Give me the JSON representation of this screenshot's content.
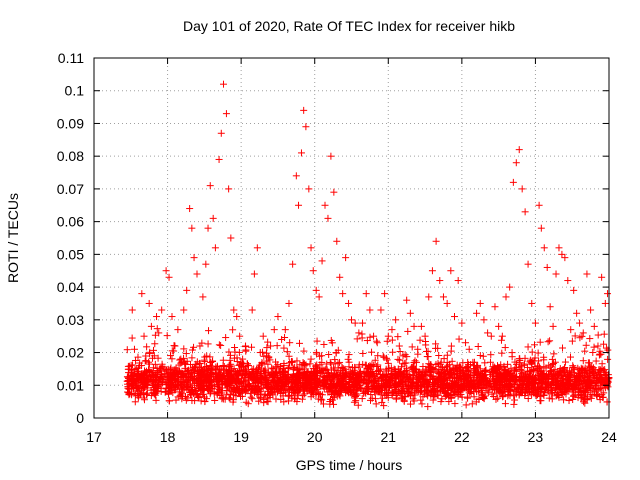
{
  "chart_data": {
    "type": "scatter",
    "title": "Day 101 of 2020, Rate Of TEC Index for receiver hikb",
    "xlabel": "GPS time / hours",
    "ylabel": "ROTI / TECUs",
    "xlim": [
      17,
      24
    ],
    "ylim": [
      0,
      0.11
    ],
    "xticks": [
      "17",
      "18",
      "19",
      "20",
      "21",
      "22",
      "23",
      "24"
    ],
    "yticks": [
      "0",
      "0.01",
      "0.02",
      "0.03",
      "0.04",
      "0.05",
      "0.06",
      "0.07",
      "0.08",
      "0.09",
      "0.1",
      "0.11"
    ],
    "xtick_values": [
      17,
      18,
      19,
      20,
      21,
      22,
      23,
      24
    ],
    "ytick_values": [
      0,
      0.01,
      0.02,
      0.03,
      0.04,
      0.05,
      0.06,
      0.07,
      0.08,
      0.09,
      0.1,
      0.11
    ],
    "grid": true,
    "marker": "+",
    "color": "#ff0000",
    "series": [
      {
        "name": "ROTI",
        "points": [
          [
            17.48,
            0.012
          ],
          [
            17.52,
            0.033
          ],
          [
            17.55,
            0.021
          ],
          [
            17.58,
            0.009
          ],
          [
            17.62,
            0.016
          ],
          [
            17.65,
            0.038
          ],
          [
            17.68,
            0.025
          ],
          [
            17.72,
            0.013
          ],
          [
            17.75,
            0.035
          ],
          [
            17.78,
            0.028
          ],
          [
            17.82,
            0.019
          ],
          [
            17.85,
            0.031
          ],
          [
            17.88,
            0.026
          ],
          [
            17.92,
            0.033
          ],
          [
            17.95,
            0.015
          ],
          [
            17.98,
            0.045
          ],
          [
            18.02,
            0.043
          ],
          [
            18.06,
            0.031
          ],
          [
            18.1,
            0.022
          ],
          [
            18.14,
            0.027
          ],
          [
            18.18,
            0.018
          ],
          [
            18.22,
            0.033
          ],
          [
            18.26,
            0.039
          ],
          [
            18.3,
            0.064
          ],
          [
            18.33,
            0.058
          ],
          [
            18.36,
            0.049
          ],
          [
            18.4,
            0.044
          ],
          [
            18.44,
            0.022
          ],
          [
            18.48,
            0.037
          ],
          [
            18.52,
            0.047
          ],
          [
            18.55,
            0.058
          ],
          [
            18.58,
            0.071
          ],
          [
            18.62,
            0.061
          ],
          [
            18.65,
            0.052
          ],
          [
            18.7,
            0.079
          ],
          [
            18.73,
            0.087
          ],
          [
            18.76,
            0.102
          ],
          [
            18.8,
            0.093
          ],
          [
            18.83,
            0.07
          ],
          [
            18.86,
            0.055
          ],
          [
            18.9,
            0.033
          ],
          [
            18.94,
            0.031
          ],
          [
            18.98,
            0.025
          ],
          [
            19.02,
            0.018
          ],
          [
            19.06,
            0.022
          ],
          [
            19.1,
            0.016
          ],
          [
            19.15,
            0.033
          ],
          [
            19.18,
            0.044
          ],
          [
            19.22,
            0.052
          ],
          [
            19.26,
            0.02
          ],
          [
            19.3,
            0.025
          ],
          [
            19.35,
            0.019
          ],
          [
            19.4,
            0.022
          ],
          [
            19.45,
            0.027
          ],
          [
            19.5,
            0.031
          ],
          [
            19.55,
            0.024
          ],
          [
            19.6,
            0.027
          ],
          [
            19.65,
            0.035
          ],
          [
            19.7,
            0.047
          ],
          [
            19.75,
            0.074
          ],
          [
            19.78,
            0.065
          ],
          [
            19.82,
            0.081
          ],
          [
            19.85,
            0.094
          ],
          [
            19.88,
            0.089
          ],
          [
            19.92,
            0.07
          ],
          [
            19.95,
            0.052
          ],
          [
            19.98,
            0.045
          ],
          [
            20.02,
            0.039
          ],
          [
            20.06,
            0.037
          ],
          [
            20.1,
            0.048
          ],
          [
            20.14,
            0.065
          ],
          [
            20.18,
            0.061
          ],
          [
            20.22,
            0.08
          ],
          [
            20.26,
            0.069
          ],
          [
            20.3,
            0.054
          ],
          [
            20.34,
            0.043
          ],
          [
            20.38,
            0.038
          ],
          [
            20.42,
            0.049
          ],
          [
            20.46,
            0.035
          ],
          [
            20.5,
            0.03
          ],
          [
            20.55,
            0.029
          ],
          [
            20.6,
            0.026
          ],
          [
            20.65,
            0.029
          ],
          [
            20.7,
            0.038
          ],
          [
            20.75,
            0.033
          ],
          [
            20.8,
            0.025
          ],
          [
            20.85,
            0.023
          ],
          [
            20.9,
            0.033
          ],
          [
            20.95,
            0.038
          ],
          [
            21.0,
            0.025
          ],
          [
            21.05,
            0.027
          ],
          [
            21.1,
            0.03
          ],
          [
            21.15,
            0.022
          ],
          [
            21.2,
            0.019
          ],
          [
            21.25,
            0.036
          ],
          [
            21.3,
            0.032
          ],
          [
            21.35,
            0.028
          ],
          [
            21.4,
            0.021
          ],
          [
            21.45,
            0.028
          ],
          [
            21.5,
            0.025
          ],
          [
            21.55,
            0.037
          ],
          [
            21.6,
            0.045
          ],
          [
            21.65,
            0.054
          ],
          [
            21.7,
            0.042
          ],
          [
            21.75,
            0.037
          ],
          [
            21.8,
            0.035
          ],
          [
            21.85,
            0.045
          ],
          [
            21.9,
            0.031
          ],
          [
            21.95,
            0.042
          ],
          [
            22.0,
            0.029
          ],
          [
            22.05,
            0.023
          ],
          [
            22.1,
            0.021
          ],
          [
            22.15,
            0.017
          ],
          [
            22.2,
            0.032
          ],
          [
            22.25,
            0.035
          ],
          [
            22.3,
            0.03
          ],
          [
            22.35,
            0.026
          ],
          [
            22.4,
            0.025
          ],
          [
            22.45,
            0.034
          ],
          [
            22.5,
            0.028
          ],
          [
            22.55,
            0.025
          ],
          [
            22.6,
            0.037
          ],
          [
            22.65,
            0.04
          ],
          [
            22.7,
            0.072
          ],
          [
            22.74,
            0.078
          ],
          [
            22.78,
            0.082
          ],
          [
            22.82,
            0.07
          ],
          [
            22.86,
            0.063
          ],
          [
            22.9,
            0.047
          ],
          [
            22.95,
            0.035
          ],
          [
            23.0,
            0.029
          ],
          [
            23.05,
            0.065
          ],
          [
            23.08,
            0.058
          ],
          [
            23.12,
            0.052
          ],
          [
            23.16,
            0.046
          ],
          [
            23.2,
            0.034
          ],
          [
            23.24,
            0.028
          ],
          [
            23.28,
            0.044
          ],
          [
            23.32,
            0.052
          ],
          [
            23.36,
            0.05
          ],
          [
            23.4,
            0.049
          ],
          [
            23.44,
            0.042
          ],
          [
            23.48,
            0.027
          ],
          [
            23.52,
            0.039
          ],
          [
            23.56,
            0.032
          ],
          [
            23.6,
            0.029
          ],
          [
            23.65,
            0.026
          ],
          [
            23.7,
            0.044
          ],
          [
            23.75,
            0.033
          ],
          [
            23.8,
            0.028
          ],
          [
            23.85,
            0.022
          ],
          [
            23.9,
            0.043
          ],
          [
            23.95,
            0.035
          ],
          [
            23.98,
            0.038
          ]
        ]
      }
    ],
    "background_band": {
      "x_range": [
        17.45,
        24
      ],
      "y_median": 0.011,
      "y_spread": 0.005,
      "density_per_hour": 520
    }
  }
}
